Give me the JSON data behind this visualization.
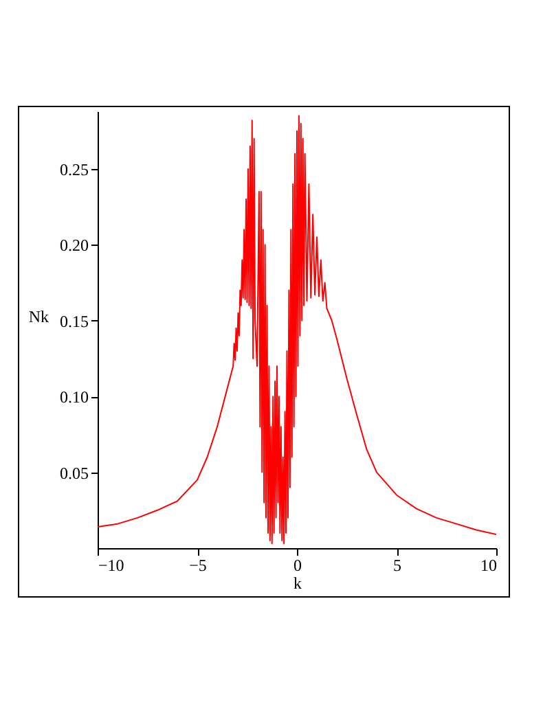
{
  "chart_data": {
    "type": "line",
    "xlabel": "k",
    "ylabel": "Nk",
    "xlim": [
      -10,
      10
    ],
    "ylim": [
      0,
      0.288
    ],
    "xticks": [
      -10,
      -5,
      0,
      5,
      10
    ],
    "yticks": [
      0.05,
      {
        "value": 0.1,
        "label": "0.10"
      },
      0.15,
      {
        "value": 0.2,
        "label": "0.20"
      },
      0.25
    ],
    "x": [
      -10,
      -9,
      -8,
      -7,
      -6,
      -5,
      -4.5,
      -4,
      -3.5,
      -3.2,
      -3.15,
      -3.1,
      -3.05,
      -3.0,
      -2.95,
      -2.9,
      -2.85,
      -2.8,
      -2.75,
      -2.7,
      -2.65,
      -2.6,
      -2.55,
      -2.5,
      -2.45,
      -2.4,
      -2.35,
      -2.3,
      -2.25,
      -2.2,
      -2.15,
      -2.1,
      -2.0,
      -1.9,
      -1.85,
      -1.8,
      -1.75,
      -1.7,
      -1.65,
      -1.6,
      -1.55,
      -1.5,
      -1.45,
      -1.4,
      -1.35,
      -1.3,
      -1.25,
      -1.2,
      -1.15,
      -1.1,
      -1.05,
      -1.0,
      -0.95,
      -0.9,
      -0.85,
      -0.8,
      -0.75,
      -0.7,
      -0.65,
      -0.6,
      -0.55,
      -0.5,
      -0.45,
      -0.4,
      -0.35,
      -0.3,
      -0.25,
      -0.2,
      -0.15,
      -0.1,
      -0.05,
      0,
      0.05,
      0.1,
      0.15,
      0.2,
      0.25,
      0.3,
      0.35,
      0.4,
      0.5,
      0.6,
      0.7,
      0.8,
      0.9,
      1.0,
      1.1,
      1.2,
      1.3,
      1.4,
      1.5,
      1.75,
      2,
      2.5,
      3,
      3.5,
      4,
      5,
      6,
      7,
      8,
      9,
      10
    ],
    "series": [
      {
        "color": "#ff0000",
        "values": [
          0.014,
          0.016,
          0.02,
          0.025,
          0.031,
          0.045,
          0.06,
          0.08,
          0.105,
          0.12,
          0.135,
          0.124,
          0.145,
          0.13,
          0.155,
          0.14,
          0.17,
          0.16,
          0.19,
          0.165,
          0.21,
          0.164,
          0.23,
          0.162,
          0.25,
          0.16,
          0.265,
          0.158,
          0.282,
          0.125,
          0.27,
          0.15,
          0.12,
          0.235,
          0.08,
          0.235,
          0.05,
          0.21,
          0.03,
          0.2,
          0.02,
          0.16,
          0.01,
          0.12,
          0.005,
          0.08,
          0.003,
          0.1,
          0.01,
          0.11,
          0.02,
          0.12,
          0.03,
          0.1,
          0.01,
          0.08,
          0.005,
          0.06,
          0.003,
          0.09,
          0.01,
          0.13,
          0.02,
          0.17,
          0.04,
          0.21,
          0.06,
          0.24,
          0.08,
          0.26,
          0.1,
          0.275,
          0.12,
          0.285,
          0.14,
          0.28,
          0.15,
          0.27,
          0.16,
          0.26,
          0.163,
          0.24,
          0.165,
          0.22,
          0.167,
          0.205,
          0.166,
          0.19,
          0.163,
          0.175,
          0.158,
          0.15,
          0.138,
          0.112,
          0.088,
          0.065,
          0.05,
          0.035,
          0.026,
          0.02,
          0.016,
          0.012,
          0.009
        ]
      }
    ]
  }
}
